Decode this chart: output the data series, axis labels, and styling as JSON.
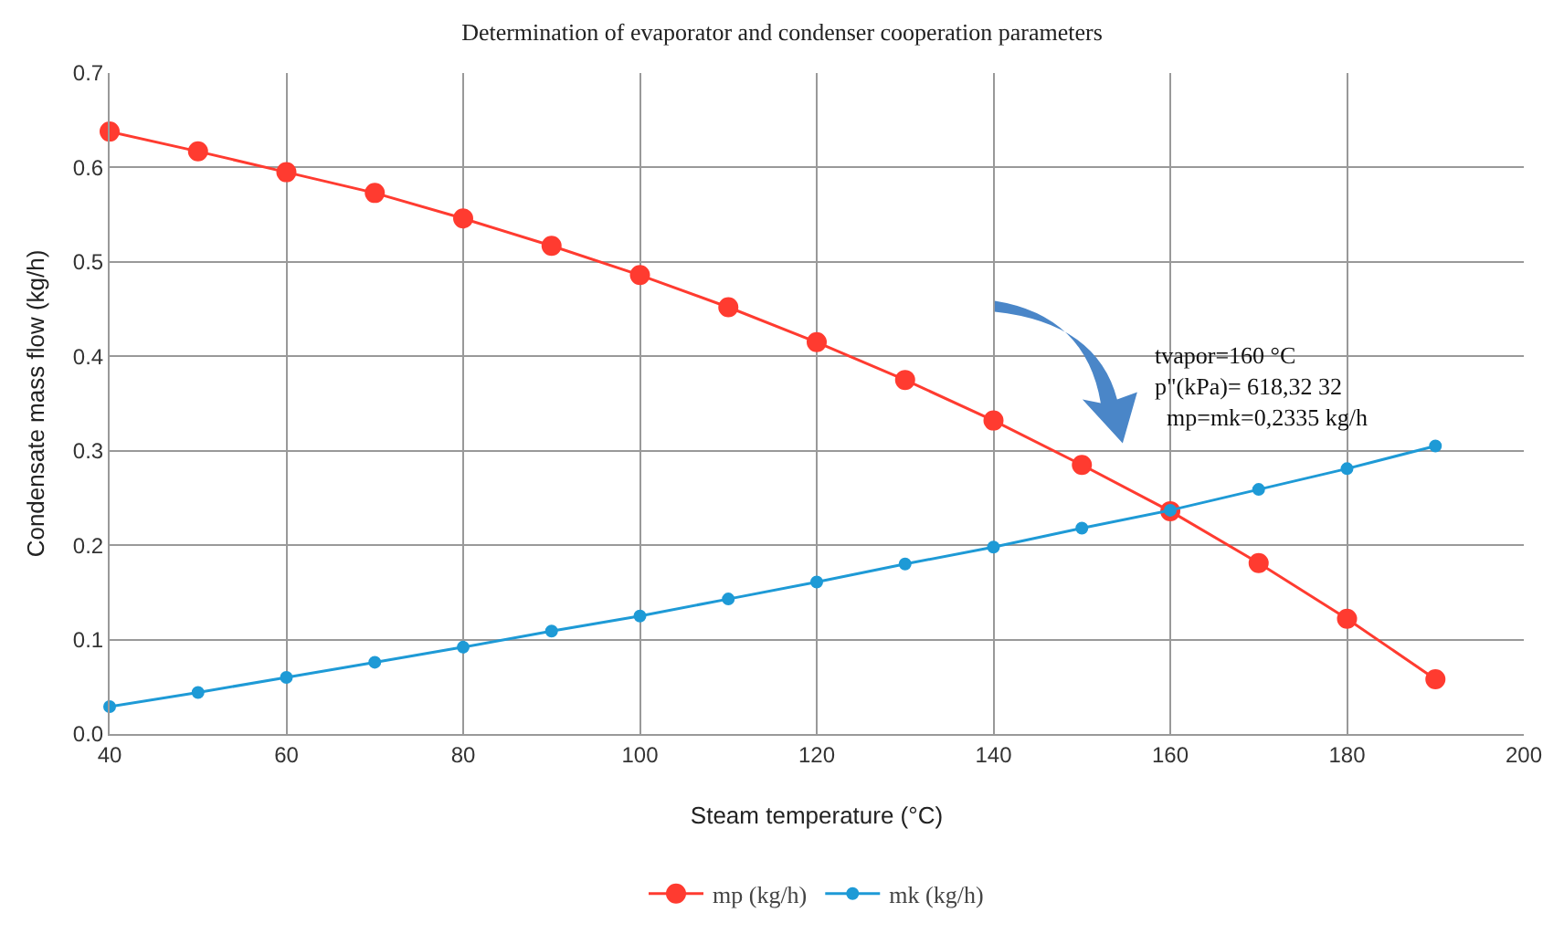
{
  "chart_data": {
    "type": "line",
    "title": "Determination of evaporator and condenser cooperation parameters",
    "xlabel": "Steam temperature (°C)",
    "ylabel": "Condensate mass flow (kg/h)",
    "x": [
      40,
      50,
      60,
      70,
      80,
      90,
      100,
      110,
      120,
      130,
      140,
      150,
      160,
      170,
      180,
      190
    ],
    "series": [
      {
        "name": "mp (kg/h)",
        "color": "#ff3b30",
        "values": [
          0.638,
          0.617,
          0.595,
          0.573,
          0.546,
          0.517,
          0.486,
          0.452,
          0.415,
          0.375,
          0.332,
          0.285,
          0.236,
          0.181,
          0.122,
          0.058
        ]
      },
      {
        "name": "mk (kg/h)",
        "color": "#1e9ad6",
        "values": [
          0.029,
          0.044,
          0.06,
          0.076,
          0.092,
          0.109,
          0.125,
          0.143,
          0.161,
          0.18,
          0.198,
          0.218,
          0.237,
          0.259,
          0.281,
          0.305
        ]
      }
    ],
    "xlim": [
      40,
      200
    ],
    "xticks": [
      40,
      60,
      80,
      100,
      120,
      140,
      160,
      180,
      200
    ],
    "ylim": [
      0,
      0.7
    ],
    "yticks": [
      {
        "value": 0,
        "label": "0.0"
      },
      0.1,
      0.2,
      0.3,
      0.4,
      0.5,
      0.6,
      0.7
    ],
    "annotations": [
      "tvapor=160 °C\np\"(kPa)= 618,32 32\n  mp=mk=0,2335 kg/h"
    ],
    "grid": true,
    "legend": "bottom",
    "marker": "circle",
    "line_style": "solid"
  }
}
